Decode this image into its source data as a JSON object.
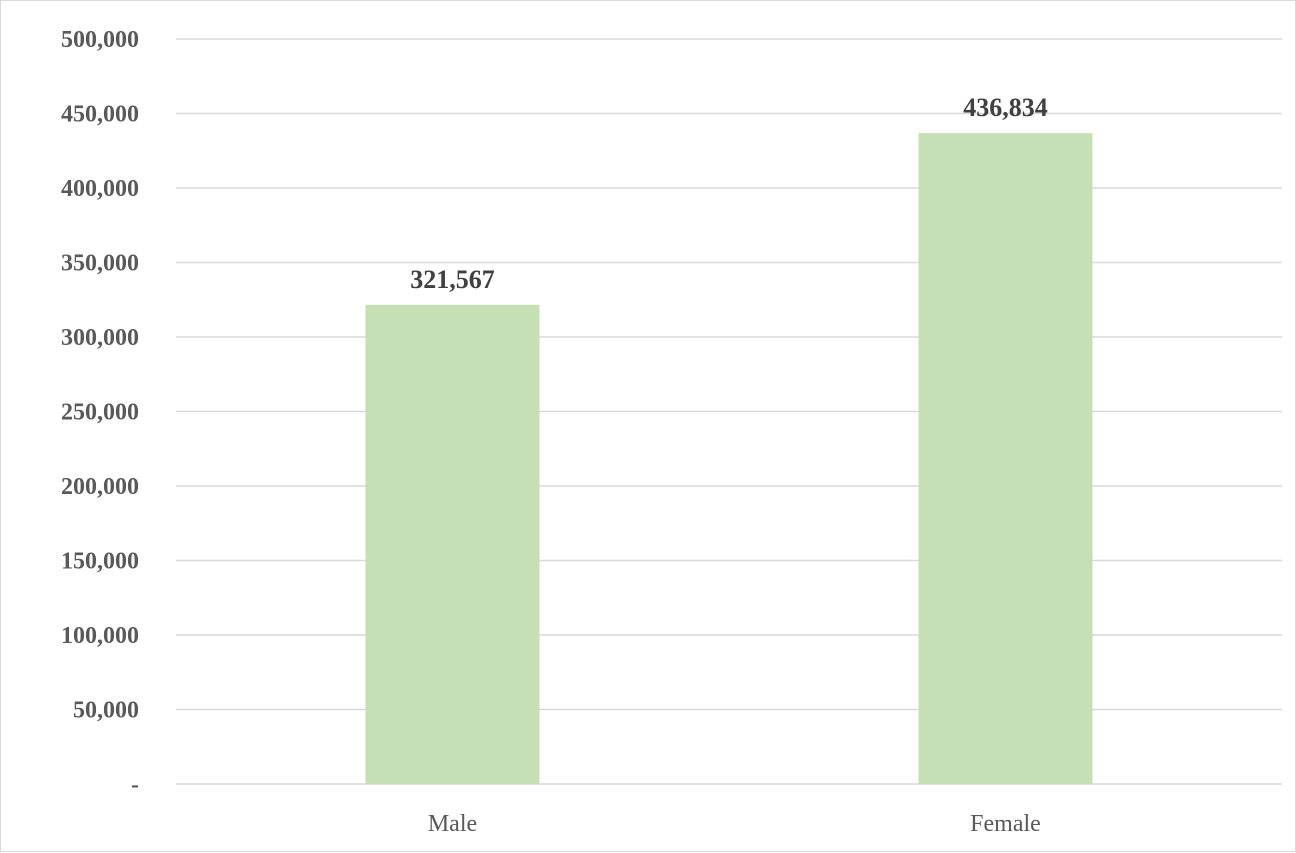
{
  "colors": {
    "bar": "#c5e0b4",
    "gridline": "#d9d9d9",
    "axis_text": "#595959",
    "data_label": "#404040"
  },
  "chart_data": {
    "type": "bar",
    "categories": [
      "Male",
      "Female"
    ],
    "values": [
      321567,
      436834
    ],
    "data_labels": [
      "321,567",
      "436,834"
    ],
    "ylim": [
      0,
      500000
    ],
    "y_ticks": [
      0,
      50000,
      100000,
      150000,
      200000,
      250000,
      300000,
      350000,
      400000,
      450000,
      500000
    ],
    "y_tick_labels": [
      "-",
      "50,000",
      "100,000",
      "150,000",
      "200,000",
      "250,000",
      "300,000",
      "350,000",
      "400,000",
      "450,000",
      "500,000"
    ],
    "grid": true,
    "legend": "none"
  }
}
